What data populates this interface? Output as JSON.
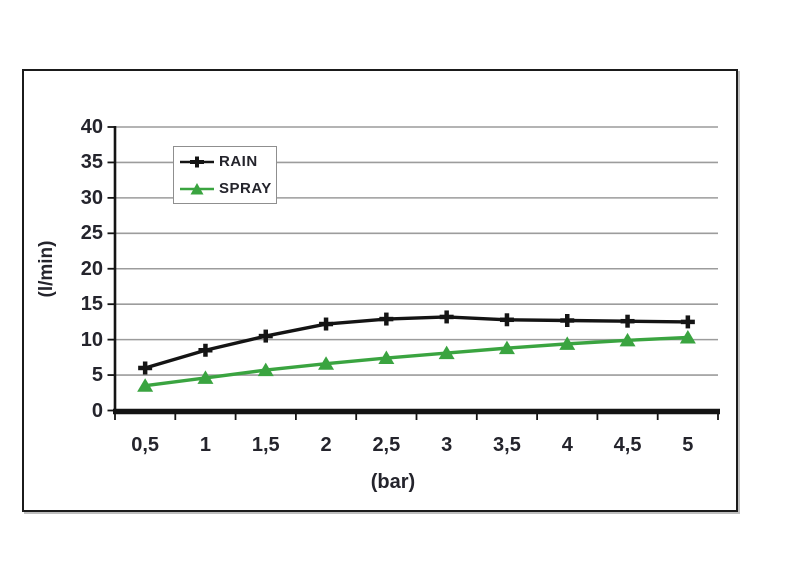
{
  "chart_data": {
    "type": "line",
    "title": "",
    "xlabel": "(bar)",
    "ylabel": "(l/min)",
    "categories": [
      "0,5",
      "1",
      "1,5",
      "2",
      "2,5",
      "3",
      "3,5",
      "4",
      "4,5",
      "5"
    ],
    "x_values": [
      0.5,
      1,
      1.5,
      2,
      2.5,
      3,
      3.5,
      4,
      4.5,
      5
    ],
    "ylim": [
      0,
      40
    ],
    "yticks": [
      0,
      5,
      10,
      15,
      20,
      25,
      30,
      35,
      40
    ],
    "grid": "horizontal",
    "legend_position": "top-left-inside",
    "series": [
      {
        "name": "RAIN",
        "marker": "plus",
        "color": "#141414",
        "values": [
          6.0,
          8.5,
          10.5,
          12.2,
          12.9,
          13.2,
          12.8,
          12.7,
          12.6,
          12.5
        ]
      },
      {
        "name": "SPRAY",
        "marker": "triangle",
        "color": "#3aa440",
        "values": [
          3.5,
          4.6,
          5.7,
          6.6,
          7.4,
          8.1,
          8.8,
          9.4,
          9.9,
          10.3
        ]
      }
    ]
  },
  "colors": {
    "background": "#ffffff",
    "figure_border": "#1b1b1b",
    "gridline": "#9c9c9c",
    "axis": "#141414",
    "text": "#24242c",
    "legend_border": "#8f8f8f"
  }
}
